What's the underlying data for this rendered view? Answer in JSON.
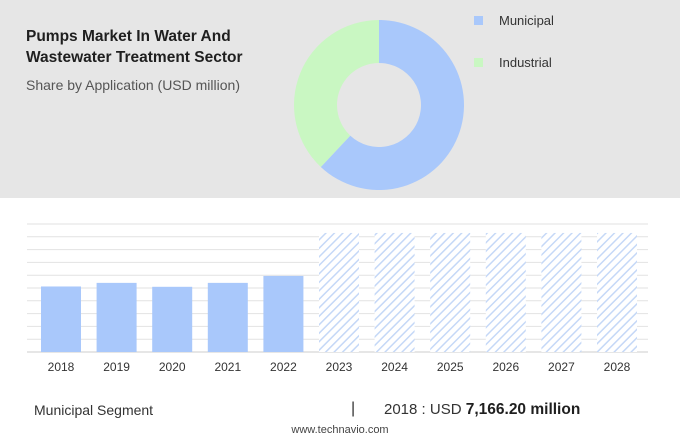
{
  "header": {
    "title": "Pumps Market In Water And Wastewater Treatment Sector",
    "subtitle": "Share by Application (USD million)"
  },
  "chart_data": [
    {
      "type": "pie",
      "donut": true,
      "categories": [
        "Municipal",
        "Industrial"
      ],
      "values": [
        62,
        38
      ],
      "colors": [
        "#a9c8fb",
        "#c9f7c2"
      ],
      "legend_position": "right"
    },
    {
      "type": "bar",
      "categories": [
        "2018",
        "2019",
        "2020",
        "2021",
        "2022",
        "2023",
        "2024",
        "2025",
        "2026",
        "2027",
        "2028"
      ],
      "values": [
        7166.2,
        7560,
        7130,
        7560,
        8320,
        null,
        null,
        null,
        null,
        null,
        null
      ],
      "forecast_categories": [
        "2023",
        "2024",
        "2025",
        "2026",
        "2027",
        "2028"
      ],
      "ylim": [
        0,
        14000
      ],
      "grid": true,
      "bar_color": "#a9c8fb",
      "forecast_color": "#c5d8f7"
    }
  ],
  "footer": {
    "segment_label": "Municipal Segment",
    "separator": "|",
    "year_prefix": "2018 : USD",
    "value": "7,166.20 million"
  },
  "website": "www.technavio.com"
}
